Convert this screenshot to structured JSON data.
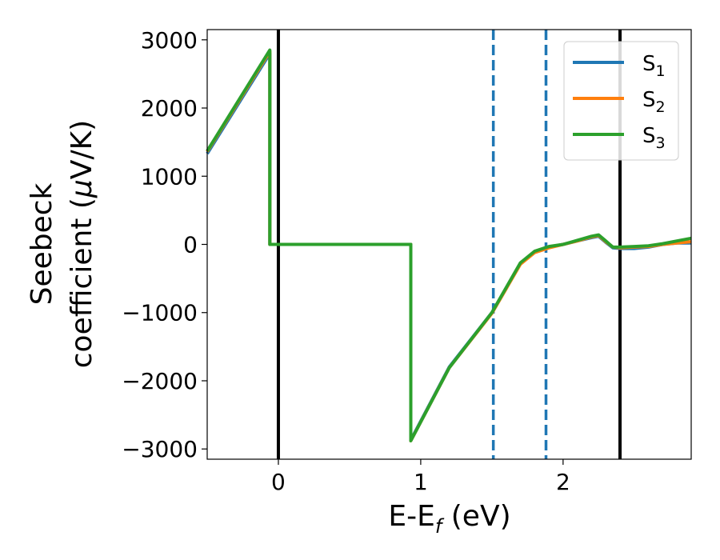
{
  "chart_data": {
    "type": "line",
    "xlabel": {
      "main": "E-E",
      "sub": "f",
      "suffix": " (eV)"
    },
    "ylabel": {
      "line1": "Seebeck",
      "line2_main": "coefficient  (",
      "mu": "μ",
      "line2_suffix": "V/K)"
    },
    "xlim": [
      -0.5,
      2.9
    ],
    "ylim": [
      -3150,
      3150
    ],
    "xticks": [
      0,
      1,
      2
    ],
    "xtick_labels": [
      "0",
      "1",
      "2"
    ],
    "yticks": [
      3000,
      2000,
      1000,
      0,
      -1000,
      -2000,
      -3000
    ],
    "ytick_labels": [
      "3000",
      "2000",
      "1000",
      "0",
      "−1000",
      "−2000",
      "−3000"
    ],
    "grid": false,
    "legend_position": "top-right",
    "vertical_lines": [
      {
        "x": 0,
        "style": "solid",
        "color": "#000000"
      },
      {
        "x": 1.51,
        "style": "dashed",
        "color": "#1f77b4"
      },
      {
        "x": 1.88,
        "style": "dashed",
        "color": "#1f77b4"
      },
      {
        "x": 2.4,
        "style": "solid",
        "color": "#000000"
      }
    ],
    "series": [
      {
        "name": "S",
        "sub": "1",
        "color": "#1f77b4",
        "x": [
          -0.5,
          -0.06,
          -0.06,
          0.93,
          0.93,
          1.2,
          1.5,
          1.7,
          1.8,
          1.9,
          2.0,
          2.1,
          2.2,
          2.25,
          2.3,
          2.35,
          2.4,
          2.5,
          2.6,
          2.7,
          2.8,
          2.9
        ],
        "y": [
          1330,
          2800,
          0,
          0,
          -2870,
          -1800,
          -1000,
          -280,
          -110,
          -40,
          0,
          50,
          100,
          120,
          30,
          -50,
          -60,
          -60,
          -40,
          0,
          20,
          20
        ]
      },
      {
        "name": "S",
        "sub": "2",
        "color": "#ff7f0e",
        "x": [
          -0.5,
          -0.06,
          -0.06,
          0.93,
          0.93,
          1.2,
          1.5,
          1.7,
          1.8,
          1.9,
          2.0,
          2.1,
          2.2,
          2.25,
          2.3,
          2.35,
          2.4,
          2.5,
          2.6,
          2.7,
          2.8,
          2.9
        ],
        "y": [
          1360,
          2830,
          0,
          0,
          -2880,
          -1810,
          -1010,
          -290,
          -120,
          -50,
          0,
          50,
          110,
          130,
          40,
          -40,
          -50,
          -40,
          -30,
          0,
          20,
          40
        ]
      },
      {
        "name": "S",
        "sub": "3",
        "color": "#2ca02c",
        "x": [
          -0.5,
          -0.06,
          -0.06,
          0.93,
          0.93,
          1.2,
          1.5,
          1.7,
          1.8,
          1.9,
          2.0,
          2.1,
          2.2,
          2.25,
          2.3,
          2.35,
          2.4,
          2.5,
          2.6,
          2.7,
          2.8,
          2.9
        ],
        "y": [
          1370,
          2850,
          0,
          0,
          -2880,
          -1810,
          -1000,
          -270,
          -100,
          -30,
          0,
          60,
          120,
          140,
          50,
          -40,
          -40,
          -30,
          -20,
          10,
          50,
          90
        ]
      }
    ]
  }
}
